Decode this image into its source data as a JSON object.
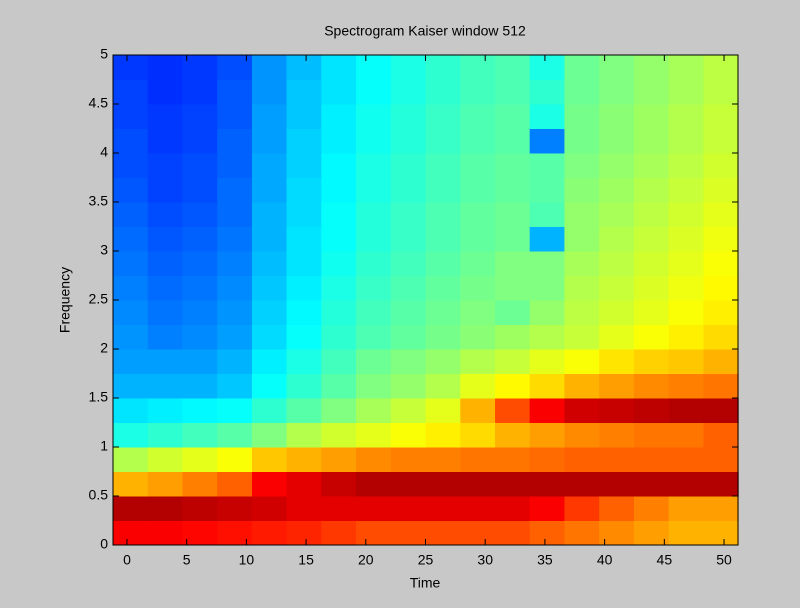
{
  "chart_data": {
    "type": "heatmap",
    "title": "Spectrogram Kaiser window 512",
    "xlabel": "Time",
    "ylabel": "Frequency",
    "colormap": "jet",
    "clim": [
      0,
      1
    ],
    "xlim": [
      -1.17,
      51.17
    ],
    "ylim": [
      0,
      5
    ],
    "xticks": [
      0,
      5,
      10,
      15,
      20,
      25,
      30,
      35,
      40,
      45,
      50
    ],
    "yticks": [
      0,
      0.5,
      1,
      1.5,
      2,
      2.5,
      3,
      3.5,
      4,
      4.5,
      5
    ],
    "x": [
      0.28,
      3.19,
      6.1,
      9.01,
      11.92,
      14.82,
      17.73,
      20.64,
      23.55,
      26.46,
      29.37,
      32.28,
      35.18,
      38.09,
      41.0,
      43.91,
      46.82,
      49.73
    ],
    "y": [
      0.125,
      0.375,
      0.625,
      0.875,
      1.125,
      1.375,
      1.625,
      1.875,
      2.125,
      2.375,
      2.625,
      2.875,
      3.125,
      3.375,
      3.625,
      3.875,
      4.125,
      4.375,
      4.625,
      4.875
    ],
    "z": [
      [
        0.88,
        0.88,
        0.87,
        0.86,
        0.85,
        0.84,
        0.82,
        0.8,
        0.8,
        0.8,
        0.8,
        0.8,
        0.78,
        0.76,
        0.74,
        0.72,
        0.7,
        0.7
      ],
      [
        0.95,
        0.95,
        0.94,
        0.93,
        0.92,
        0.9,
        0.9,
        0.9,
        0.9,
        0.9,
        0.9,
        0.9,
        0.88,
        0.82,
        0.78,
        0.75,
        0.72,
        0.72
      ],
      [
        0.7,
        0.72,
        0.75,
        0.78,
        0.88,
        0.9,
        0.93,
        0.95,
        0.95,
        0.95,
        0.95,
        0.95,
        0.95,
        0.95,
        0.95,
        0.95,
        0.95,
        0.95
      ],
      [
        0.55,
        0.58,
        0.6,
        0.62,
        0.68,
        0.7,
        0.72,
        0.74,
        0.75,
        0.75,
        0.76,
        0.76,
        0.77,
        0.78,
        0.78,
        0.78,
        0.78,
        0.78
      ],
      [
        0.4,
        0.42,
        0.44,
        0.46,
        0.5,
        0.55,
        0.58,
        0.6,
        0.62,
        0.64,
        0.66,
        0.7,
        0.72,
        0.74,
        0.75,
        0.76,
        0.76,
        0.78
      ],
      [
        0.35,
        0.36,
        0.37,
        0.38,
        0.42,
        0.46,
        0.5,
        0.54,
        0.57,
        0.6,
        0.7,
        0.8,
        0.88,
        0.92,
        0.93,
        0.94,
        0.95,
        0.95
      ],
      [
        0.3,
        0.3,
        0.3,
        0.32,
        0.38,
        0.42,
        0.46,
        0.5,
        0.52,
        0.55,
        0.6,
        0.63,
        0.66,
        0.7,
        0.72,
        0.74,
        0.75,
        0.76
      ],
      [
        0.28,
        0.28,
        0.28,
        0.3,
        0.36,
        0.4,
        0.44,
        0.48,
        0.5,
        0.52,
        0.55,
        0.57,
        0.6,
        0.62,
        0.65,
        0.67,
        0.68,
        0.7
      ],
      [
        0.27,
        0.25,
        0.26,
        0.28,
        0.34,
        0.38,
        0.42,
        0.45,
        0.47,
        0.49,
        0.51,
        0.53,
        0.55,
        0.57,
        0.6,
        0.62,
        0.64,
        0.66
      ],
      [
        0.26,
        0.24,
        0.25,
        0.27,
        0.33,
        0.37,
        0.41,
        0.44,
        0.46,
        0.48,
        0.5,
        0.48,
        0.52,
        0.56,
        0.58,
        0.6,
        0.62,
        0.64
      ],
      [
        0.25,
        0.23,
        0.24,
        0.26,
        0.32,
        0.36,
        0.4,
        0.43,
        0.45,
        0.47,
        0.49,
        0.5,
        0.5,
        0.55,
        0.57,
        0.59,
        0.61,
        0.63
      ],
      [
        0.24,
        0.22,
        0.23,
        0.25,
        0.31,
        0.35,
        0.39,
        0.42,
        0.44,
        0.46,
        0.48,
        0.5,
        0.5,
        0.54,
        0.56,
        0.58,
        0.6,
        0.62
      ],
      [
        0.23,
        0.21,
        0.22,
        0.24,
        0.3,
        0.35,
        0.38,
        0.41,
        0.43,
        0.45,
        0.47,
        0.48,
        0.3,
        0.52,
        0.55,
        0.57,
        0.59,
        0.61
      ],
      [
        0.22,
        0.2,
        0.21,
        0.23,
        0.3,
        0.34,
        0.38,
        0.41,
        0.43,
        0.45,
        0.47,
        0.48,
        0.45,
        0.52,
        0.54,
        0.56,
        0.58,
        0.6
      ],
      [
        0.21,
        0.19,
        0.2,
        0.23,
        0.29,
        0.34,
        0.37,
        0.4,
        0.42,
        0.44,
        0.46,
        0.47,
        0.46,
        0.51,
        0.53,
        0.55,
        0.57,
        0.59
      ],
      [
        0.2,
        0.19,
        0.2,
        0.22,
        0.29,
        0.33,
        0.37,
        0.4,
        0.42,
        0.44,
        0.46,
        0.47,
        0.46,
        0.5,
        0.52,
        0.54,
        0.56,
        0.58
      ],
      [
        0.2,
        0.18,
        0.19,
        0.22,
        0.28,
        0.33,
        0.36,
        0.39,
        0.41,
        0.43,
        0.45,
        0.46,
        0.25,
        0.49,
        0.51,
        0.53,
        0.55,
        0.57
      ],
      [
        0.19,
        0.18,
        0.19,
        0.21,
        0.28,
        0.32,
        0.36,
        0.39,
        0.41,
        0.43,
        0.45,
        0.46,
        0.4,
        0.49,
        0.51,
        0.53,
        0.55,
        0.57
      ],
      [
        0.19,
        0.17,
        0.18,
        0.21,
        0.27,
        0.32,
        0.35,
        0.38,
        0.4,
        0.42,
        0.44,
        0.45,
        0.42,
        0.48,
        0.5,
        0.52,
        0.54,
        0.56
      ],
      [
        0.18,
        0.17,
        0.18,
        0.2,
        0.27,
        0.31,
        0.35,
        0.38,
        0.4,
        0.42,
        0.44,
        0.45,
        0.4,
        0.48,
        0.5,
        0.52,
        0.54,
        0.56
      ]
    ]
  }
}
